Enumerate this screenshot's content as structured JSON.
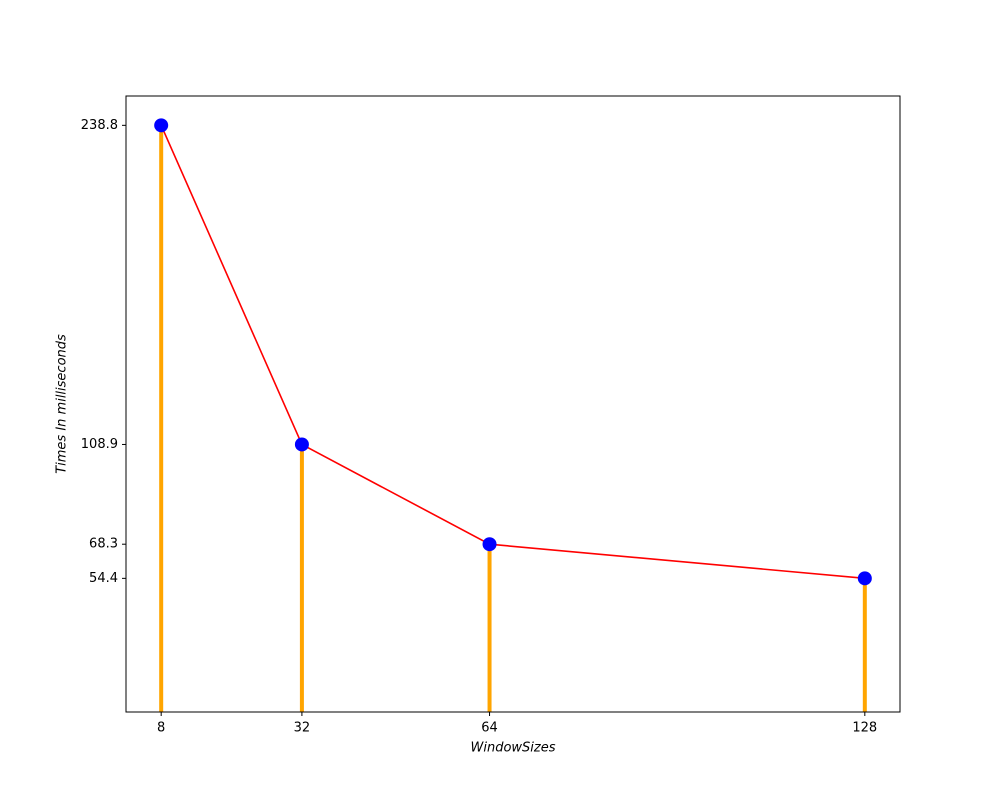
{
  "chart_data": {
    "type": "stem",
    "x_label": "WindowSizes",
    "y_label": "Times In milliseconds",
    "x": [
      8,
      32,
      64,
      128
    ],
    "values": [
      238.8,
      108.9,
      68.3,
      54.4
    ],
    "stem_color": "#ffa500",
    "line_color": "#ff0000",
    "marker_color": "#0000ff",
    "xlim": [
      2,
      134
    ],
    "ylim": [
      0,
      250.74
    ],
    "xticks": [
      8,
      32,
      64,
      128
    ],
    "yticks": [
      54.4,
      68.3,
      108.9,
      238.8
    ],
    "grid": false
  }
}
